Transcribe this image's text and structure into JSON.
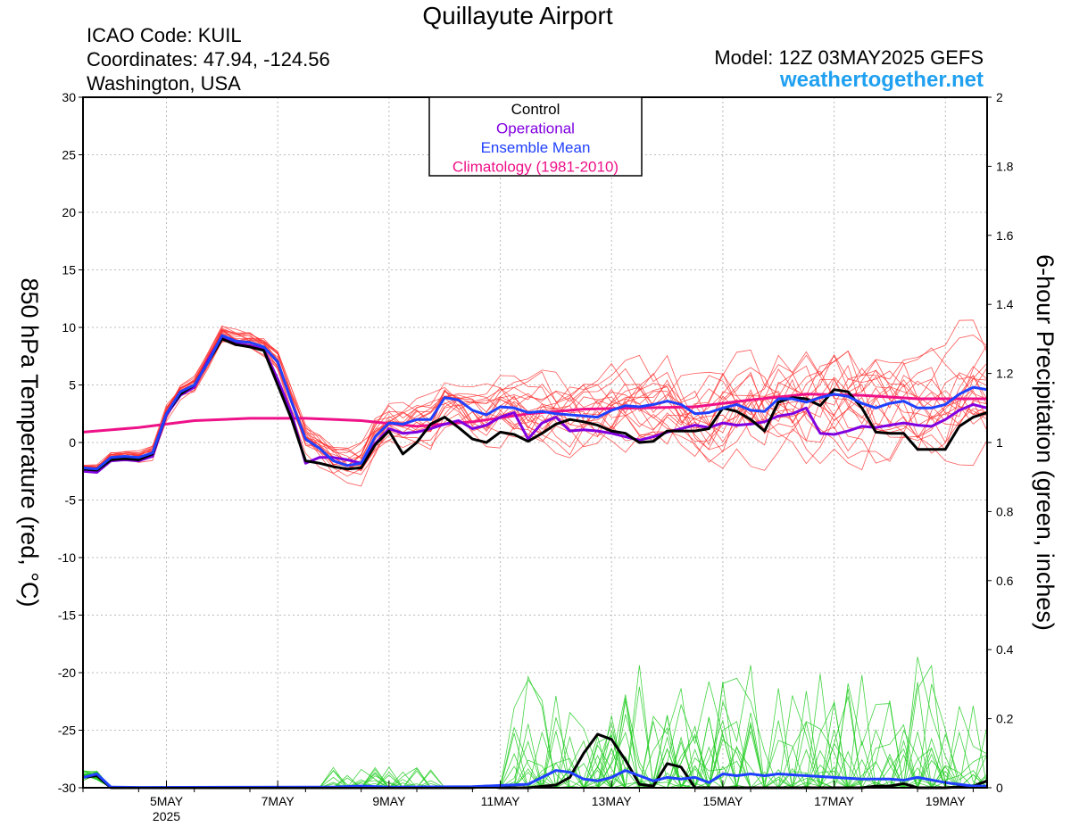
{
  "header": {
    "title": "Quillayute Airport",
    "icao": "ICAO Code: KUIL",
    "coordinates": "Coordinates: 47.94, -124.56",
    "region": "Washington, USA",
    "model": "Model: 12Z 03MAY2025 GEFS",
    "site": "weathertogether.net"
  },
  "colors": {
    "control": "#000000",
    "operational": "#8000e0",
    "ensemble_mean": "#2040ff",
    "climatology": "#ee1188",
    "members_temp": "#ff3030",
    "members_precip": "#22cc22",
    "site": "#1fa0f0"
  },
  "chart_data": {
    "type": "line",
    "title": "Quillayute Airport",
    "ylabel": "850 hPa Temperature (red, °C)",
    "y2label": "6-hour Precipitation (green, inches)",
    "ylim": [
      -30,
      30
    ],
    "y2lim": [
      0,
      2
    ],
    "yticks": [
      30,
      25,
      20,
      15,
      10,
      5,
      0,
      -5,
      -10,
      -15,
      -20,
      -25,
      -30
    ],
    "y2ticks": [
      2,
      1.8,
      1.6,
      1.4,
      1.2,
      1,
      0.8,
      0.6,
      0.4,
      0.2,
      0
    ],
    "xlim_hours": [
      0,
      390
    ],
    "x_start_hour_note": "",
    "xticks": [
      {
        "hour": 36,
        "label": "5MAY",
        "sub": "2025"
      },
      {
        "hour": 84,
        "label": "7MAY",
        "sub": ""
      },
      {
        "hour": 132,
        "label": "9MAY",
        "sub": ""
      },
      {
        "hour": 180,
        "label": "11MAY",
        "sub": ""
      },
      {
        "hour": 228,
        "label": "13MAY",
        "sub": ""
      },
      {
        "hour": 276,
        "label": "15MAY",
        "sub": ""
      },
      {
        "hour": 324,
        "label": "17MAY",
        "sub": ""
      },
      {
        "hour": 372,
        "label": "19MAY",
        "sub": ""
      }
    ],
    "legend": [
      "Control",
      "Operational",
      "Ensemble Mean",
      "Climatology (1981-2010)"
    ],
    "legend_position": "top-center",
    "grid": true,
    "series": [
      {
        "name": "Control",
        "axis": "temp",
        "points": [
          [
            0,
            -2.3
          ],
          [
            6,
            -2.4
          ],
          [
            12,
            -1.5
          ],
          [
            18,
            -1.4
          ],
          [
            24,
            -1.5
          ],
          [
            30,
            -1
          ],
          [
            36,
            2.5
          ],
          [
            42,
            4.2
          ],
          [
            48,
            5
          ],
          [
            54,
            7
          ],
          [
            60,
            9
          ],
          [
            66,
            8.5
          ],
          [
            72,
            8.3
          ],
          [
            78,
            8
          ],
          [
            84,
            5
          ],
          [
            90,
            2
          ],
          [
            96,
            -1.6
          ],
          [
            102,
            -1.8
          ],
          [
            108,
            -2.1
          ],
          [
            114,
            -2.3
          ],
          [
            120,
            -2.2
          ],
          [
            126,
            -0.2
          ],
          [
            132,
            1
          ],
          [
            138,
            -1
          ],
          [
            144,
            0
          ],
          [
            150,
            1.6
          ],
          [
            156,
            2.2
          ],
          [
            162,
            1.3
          ],
          [
            168,
            0.3
          ],
          [
            174,
            0
          ],
          [
            180,
            0.9
          ],
          [
            186,
            0.7
          ],
          [
            192,
            0.1
          ],
          [
            198,
            0.8
          ],
          [
            204,
            1.6
          ],
          [
            210,
            2
          ],
          [
            216,
            1.8
          ],
          [
            222,
            1.5
          ],
          [
            228,
            1
          ],
          [
            234,
            0.8
          ],
          [
            240,
            0
          ],
          [
            246,
            0.1
          ],
          [
            252,
            1
          ],
          [
            258,
            1
          ],
          [
            264,
            1
          ],
          [
            270,
            1.2
          ],
          [
            276,
            3
          ],
          [
            282,
            2.7
          ],
          [
            288,
            2
          ],
          [
            294,
            1
          ],
          [
            300,
            3.5
          ],
          [
            306,
            3.9
          ],
          [
            312,
            3.8
          ],
          [
            318,
            3.2
          ],
          [
            324,
            4.6
          ],
          [
            330,
            4.4
          ],
          [
            336,
            3
          ],
          [
            342,
            0.9
          ],
          [
            348,
            0.8
          ],
          [
            354,
            0.8
          ],
          [
            360,
            -0.6
          ],
          [
            366,
            -0.6
          ],
          [
            372,
            -0.6
          ],
          [
            378,
            1.4
          ],
          [
            384,
            2.2
          ],
          [
            390,
            2.6
          ]
        ]
      },
      {
        "name": "Operational",
        "axis": "temp",
        "points": [
          [
            0,
            -2.5
          ],
          [
            6,
            -2.6
          ],
          [
            12,
            -1.6
          ],
          [
            18,
            -1.5
          ],
          [
            24,
            -1.6
          ],
          [
            30,
            -1.2
          ],
          [
            36,
            2.4
          ],
          [
            42,
            4.1
          ],
          [
            48,
            4.8
          ],
          [
            54,
            7.2
          ],
          [
            60,
            9.2
          ],
          [
            66,
            8.6
          ],
          [
            72,
            8.4
          ],
          [
            78,
            8.1
          ],
          [
            84,
            5.5
          ],
          [
            90,
            2.5
          ],
          [
            96,
            -1.8
          ],
          [
            102,
            -1.3
          ],
          [
            108,
            -1.3
          ],
          [
            114,
            -1.5
          ],
          [
            120,
            -1.8
          ],
          [
            126,
            -0.1
          ],
          [
            132,
            1.2
          ],
          [
            138,
            0.8
          ],
          [
            144,
            0.9
          ],
          [
            150,
            1.2
          ],
          [
            156,
            1.6
          ],
          [
            162,
            1.9
          ],
          [
            168,
            1.2
          ],
          [
            174,
            1.5
          ],
          [
            180,
            2.2
          ],
          [
            186,
            2.6
          ],
          [
            192,
            0.3
          ],
          [
            198,
            1.7
          ],
          [
            204,
            2.2
          ],
          [
            210,
            1
          ],
          [
            216,
            1.1
          ],
          [
            222,
            1
          ],
          [
            228,
            0.8
          ],
          [
            234,
            0.5
          ],
          [
            240,
            0.2
          ],
          [
            246,
            0.5
          ],
          [
            252,
            0.9
          ],
          [
            258,
            1.2
          ],
          [
            264,
            1.5
          ],
          [
            270,
            1.3
          ],
          [
            276,
            1.7
          ],
          [
            282,
            1.5
          ],
          [
            288,
            1.6
          ],
          [
            294,
            1.8
          ],
          [
            300,
            2.3
          ],
          [
            306,
            2.5
          ],
          [
            312,
            3
          ],
          [
            318,
            0.8
          ],
          [
            324,
            0.7
          ],
          [
            330,
            1
          ],
          [
            336,
            1.4
          ],
          [
            342,
            1.3
          ],
          [
            348,
            1.5
          ],
          [
            354,
            1.7
          ],
          [
            360,
            1.5
          ],
          [
            366,
            1.4
          ],
          [
            372,
            2
          ],
          [
            378,
            2.8
          ],
          [
            384,
            3.3
          ],
          [
            390,
            3
          ]
        ]
      },
      {
        "name": "Ensemble Mean",
        "axis": "temp",
        "points": [
          [
            0,
            -2.2
          ],
          [
            6,
            -2.3
          ],
          [
            12,
            -1.3
          ],
          [
            18,
            -1.2
          ],
          [
            24,
            -1.3
          ],
          [
            30,
            -0.9
          ],
          [
            36,
            2.5
          ],
          [
            42,
            4.4
          ],
          [
            48,
            5
          ],
          [
            54,
            7
          ],
          [
            60,
            9.3
          ],
          [
            66,
            8.8
          ],
          [
            72,
            8.7
          ],
          [
            78,
            8.3
          ],
          [
            84,
            7
          ],
          [
            90,
            3.5
          ],
          [
            96,
            0.3
          ],
          [
            102,
            -0.5
          ],
          [
            108,
            -1.6
          ],
          [
            114,
            -2
          ],
          [
            120,
            -1.8
          ],
          [
            126,
            0.5
          ],
          [
            132,
            1.7
          ],
          [
            138,
            1.6
          ],
          [
            144,
            2
          ],
          [
            150,
            2
          ],
          [
            156,
            3.9
          ],
          [
            162,
            3.7
          ],
          [
            168,
            2.8
          ],
          [
            174,
            2.4
          ],
          [
            180,
            3.1
          ],
          [
            186,
            3
          ],
          [
            192,
            2.6
          ],
          [
            198,
            2.7
          ],
          [
            204,
            2.5
          ],
          [
            210,
            2.4
          ],
          [
            216,
            2.3
          ],
          [
            222,
            2.2
          ],
          [
            228,
            2.8
          ],
          [
            234,
            3.2
          ],
          [
            240,
            3.1
          ],
          [
            246,
            3.3
          ],
          [
            252,
            3.6
          ],
          [
            258,
            3.3
          ],
          [
            264,
            2.5
          ],
          [
            270,
            2.6
          ],
          [
            276,
            3
          ],
          [
            282,
            3.3
          ],
          [
            288,
            2.8
          ],
          [
            294,
            2.7
          ],
          [
            300,
            3.8
          ],
          [
            306,
            3.8
          ],
          [
            312,
            3.5
          ],
          [
            318,
            3.9
          ],
          [
            324,
            4.2
          ],
          [
            330,
            4
          ],
          [
            336,
            3.4
          ],
          [
            342,
            3
          ],
          [
            348,
            3.4
          ],
          [
            354,
            3.6
          ],
          [
            360,
            3
          ],
          [
            366,
            3
          ],
          [
            372,
            3.3
          ],
          [
            378,
            4.2
          ],
          [
            384,
            4.8
          ],
          [
            390,
            4.6
          ]
        ]
      },
      {
        "name": "Climatology (1981-2010)",
        "axis": "temp",
        "points": [
          [
            0,
            0.9
          ],
          [
            24,
            1.3
          ],
          [
            48,
            1.9
          ],
          [
            72,
            2.1
          ],
          [
            96,
            2.1
          ],
          [
            120,
            1.9
          ],
          [
            144,
            1.4
          ],
          [
            168,
            1.8
          ],
          [
            192,
            2.5
          ],
          [
            216,
            2.9
          ],
          [
            240,
            3
          ],
          [
            264,
            3.1
          ],
          [
            288,
            3.7
          ],
          [
            312,
            4.2
          ],
          [
            336,
            4.1
          ],
          [
            360,
            3.8
          ],
          [
            390,
            3.8
          ]
        ]
      },
      {
        "name": "Control precipitation",
        "axis": "precip",
        "points": [
          [
            0,
            0.03
          ],
          [
            6,
            0.035
          ],
          [
            12,
            0
          ],
          [
            24,
            0
          ],
          [
            96,
            0
          ],
          [
            168,
            0
          ],
          [
            174,
            0.005
          ],
          [
            180,
            0
          ],
          [
            192,
            0
          ],
          [
            204,
            0.008
          ],
          [
            210,
            0.03
          ],
          [
            216,
            0.1
          ],
          [
            222,
            0.155
          ],
          [
            228,
            0.14
          ],
          [
            234,
            0.08
          ],
          [
            240,
            0.01
          ],
          [
            246,
            0.005
          ],
          [
            252,
            0.07
          ],
          [
            258,
            0.06
          ],
          [
            264,
            0
          ],
          [
            336,
            0
          ],
          [
            342,
            0.005
          ],
          [
            348,
            0.005
          ],
          [
            354,
            0.012
          ],
          [
            360,
            0
          ],
          [
            372,
            0
          ],
          [
            384,
            0.005
          ],
          [
            390,
            0.02
          ]
        ]
      },
      {
        "name": "Ensemble mean precipitation",
        "axis": "precip",
        "points": [
          [
            0,
            0.03
          ],
          [
            6,
            0.04
          ],
          [
            12,
            0.002
          ],
          [
            24,
            0.001
          ],
          [
            96,
            0.002
          ],
          [
            108,
            0.002
          ],
          [
            120,
            0.005
          ],
          [
            132,
            0.002
          ],
          [
            168,
            0.003
          ],
          [
            192,
            0.01
          ],
          [
            204,
            0.05
          ],
          [
            210,
            0.045
          ],
          [
            216,
            0.025
          ],
          [
            222,
            0.02
          ],
          [
            228,
            0.03
          ],
          [
            234,
            0.05
          ],
          [
            240,
            0.035
          ],
          [
            246,
            0.02
          ],
          [
            252,
            0.03
          ],
          [
            258,
            0.025
          ],
          [
            264,
            0.03
          ],
          [
            270,
            0.015
          ],
          [
            276,
            0.04
          ],
          [
            282,
            0.035
          ],
          [
            288,
            0.04
          ],
          [
            294,
            0.035
          ],
          [
            300,
            0.04
          ],
          [
            312,
            0.035
          ],
          [
            324,
            0.03
          ],
          [
            336,
            0.025
          ],
          [
            342,
            0.025
          ],
          [
            348,
            0.025
          ],
          [
            354,
            0.022
          ],
          [
            360,
            0.03
          ],
          [
            372,
            0.015
          ],
          [
            384,
            0.005
          ],
          [
            390,
            0.005
          ]
        ]
      }
    ],
    "member_summary_note": ""
  }
}
